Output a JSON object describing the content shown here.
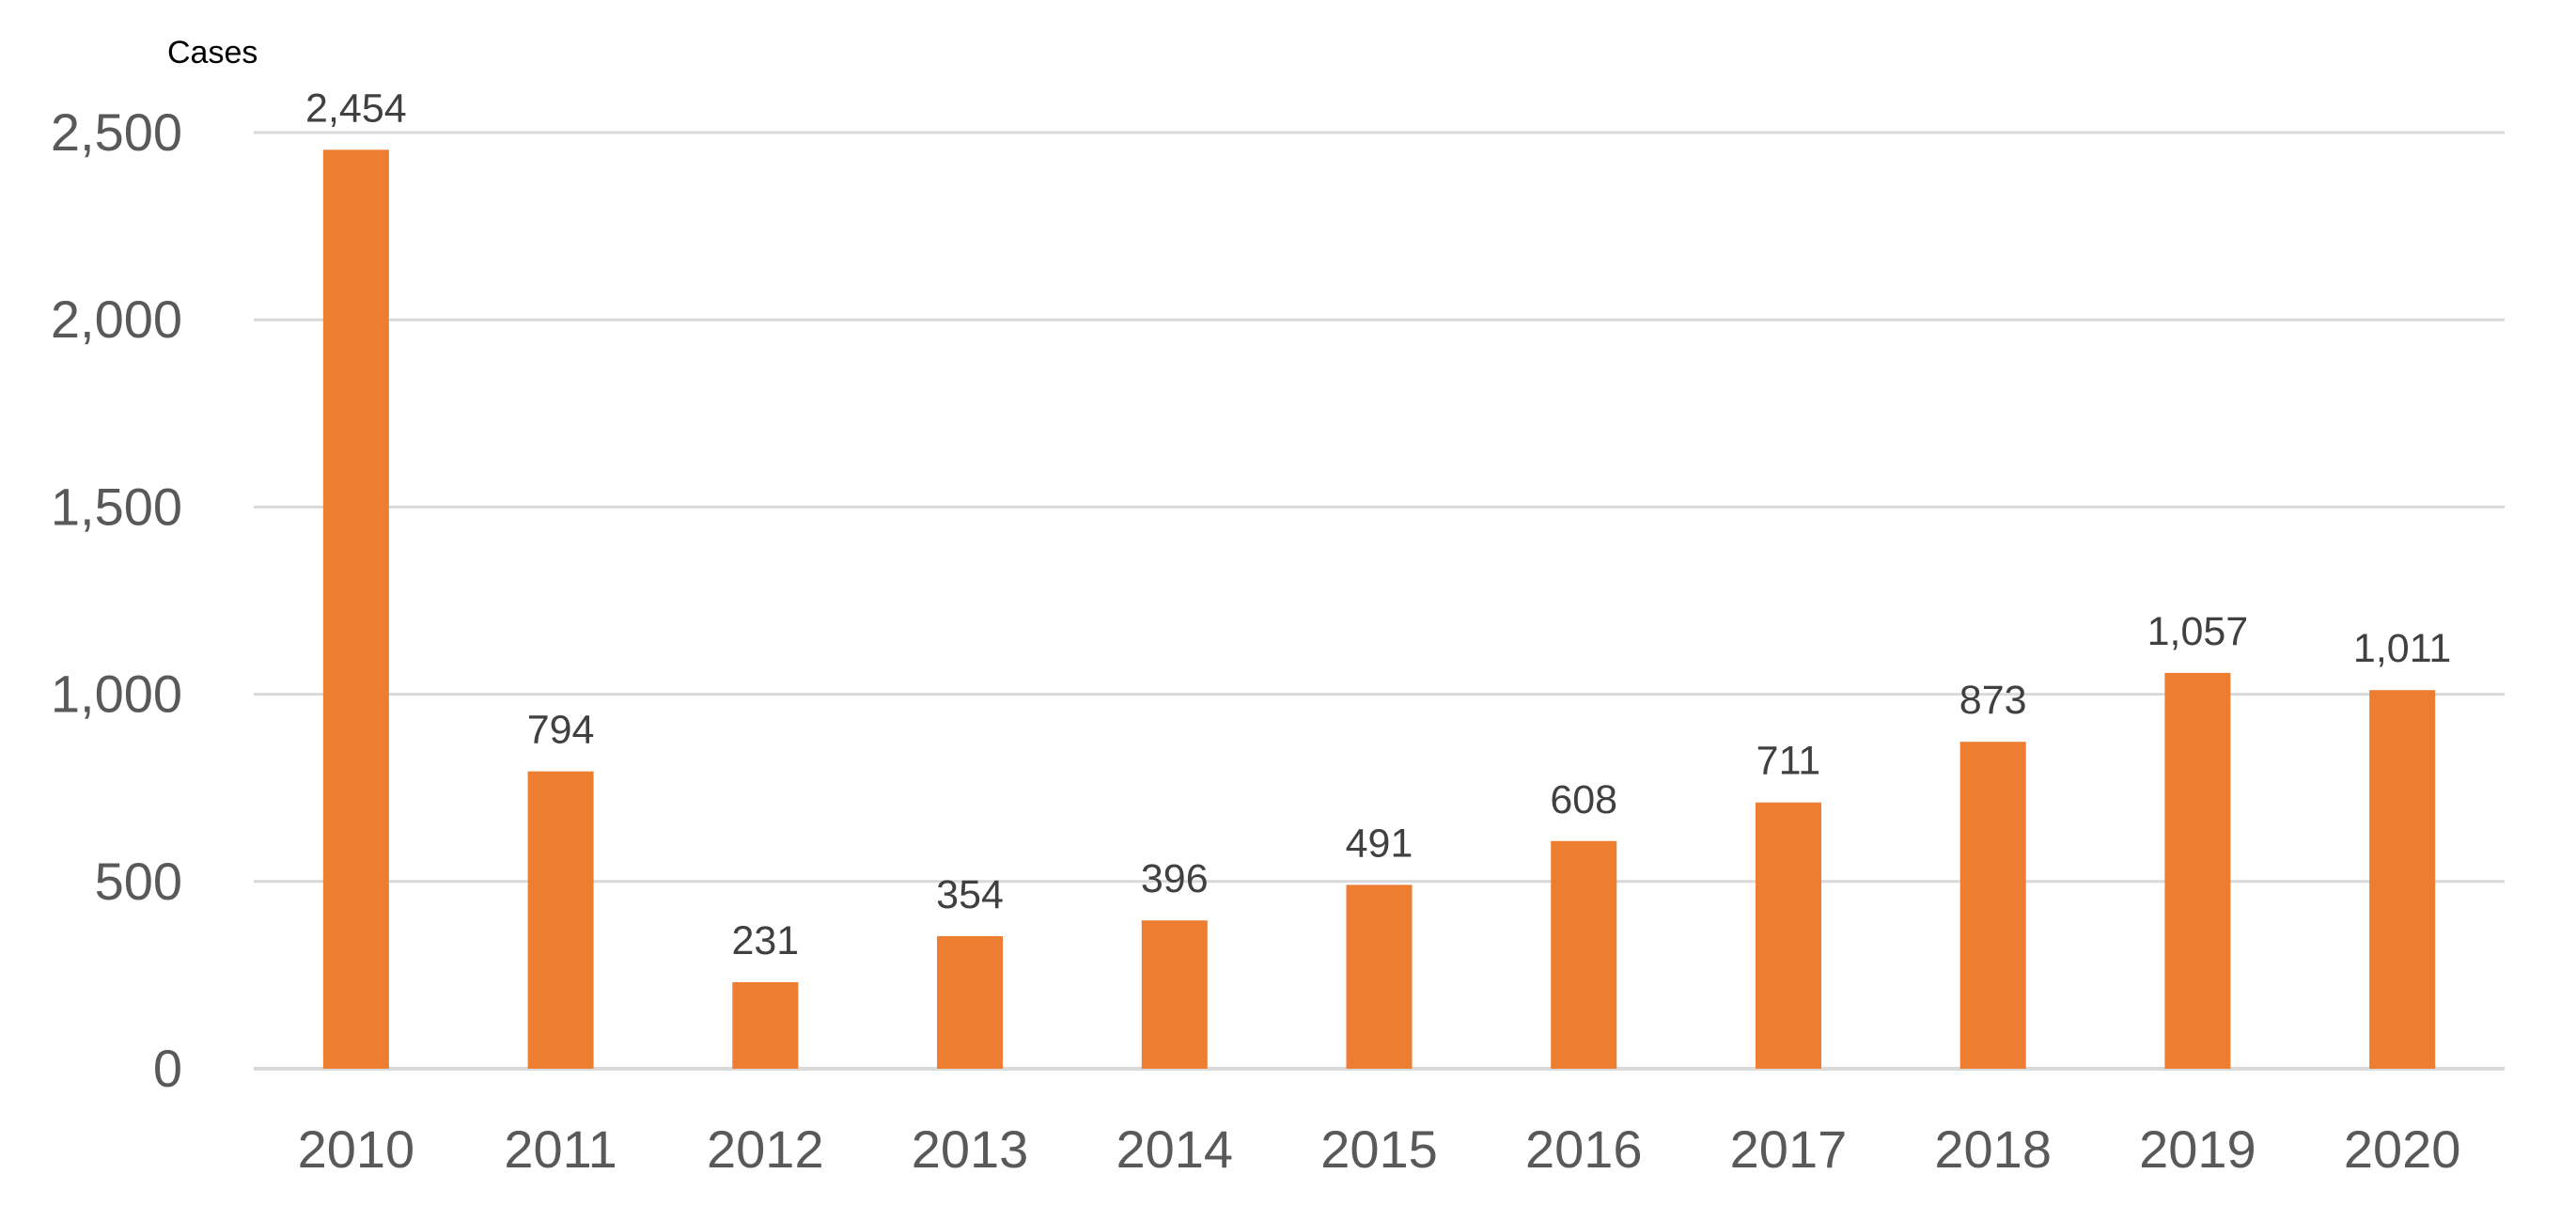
{
  "chart_data": {
    "type": "bar",
    "title": "",
    "xlabel": "",
    "ylabel": "Cases",
    "categories": [
      "2010",
      "2011",
      "2012",
      "2013",
      "2014",
      "2015",
      "2016",
      "2017",
      "2018",
      "2019",
      "2020"
    ],
    "values": [
      2454,
      794,
      231,
      354,
      396,
      491,
      608,
      711,
      873,
      1057,
      1011
    ],
    "value_labels": [
      "2,454",
      "794",
      "231",
      "354",
      "396",
      "491",
      "608",
      "711",
      "873",
      "1,057",
      "1,011"
    ],
    "yticks": [
      0,
      500,
      1000,
      1500,
      2000,
      2500
    ],
    "ytick_labels": [
      "0",
      "500",
      "1,000",
      "1,500",
      "2,000",
      "2,500"
    ],
    "ylim": [
      0,
      2500
    ],
    "grid": true,
    "legend": "none",
    "colors": {
      "bar": "#ED7D31",
      "grid": "#D9D9D9",
      "tick_text": "#595959",
      "data_label_text": "#404040"
    }
  }
}
